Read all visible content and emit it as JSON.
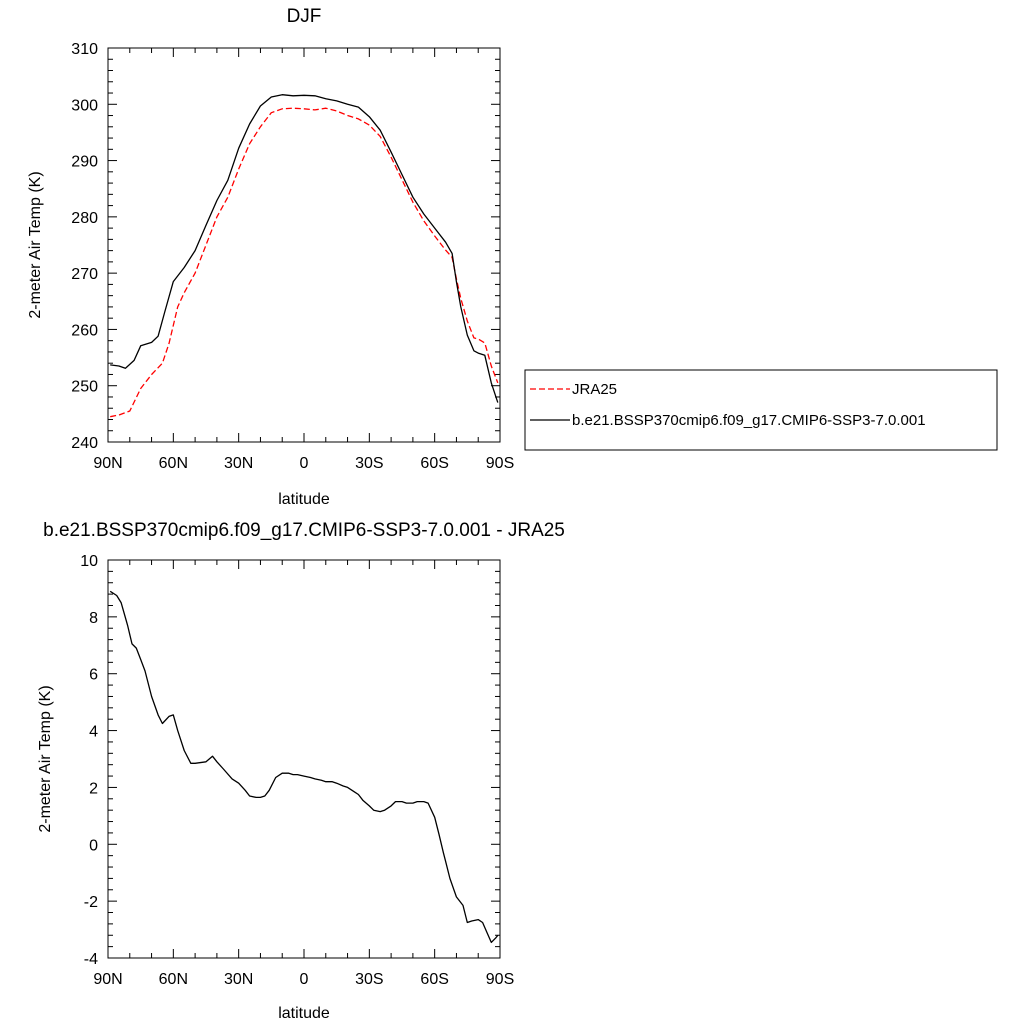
{
  "chart_data": [
    {
      "type": "line",
      "title": "DJF",
      "xlabel": "latitude",
      "ylabel": "2-meter Air Temp (K)",
      "xlim": [
        90,
        -90
      ],
      "ylim": [
        240,
        310
      ],
      "xticks": [
        90,
        60,
        30,
        0,
        -30,
        -60,
        -90
      ],
      "xtick_labels": [
        "90N",
        "60N",
        "30N",
        "0",
        "30S",
        "60S",
        "90S"
      ],
      "yticks": [
        240,
        250,
        260,
        270,
        280,
        290,
        300,
        310
      ],
      "ytick_labels": [
        "240",
        "250",
        "260",
        "270",
        "280",
        "290",
        "300",
        "310"
      ],
      "grid": false,
      "legend_position": "right",
      "series": [
        {
          "name": "JRA25",
          "color": "#ff0000",
          "dash": "dashed",
          "x": [
            89,
            85,
            80,
            75,
            70,
            65,
            62,
            58,
            55,
            50,
            45,
            40,
            35,
            30,
            25,
            20,
            15,
            10,
            5,
            0,
            -5,
            -10,
            -15,
            -20,
            -25,
            -30,
            -35,
            -40,
            -45,
            -50,
            -55,
            -60,
            -65,
            -68,
            -70,
            -72,
            -75,
            -78,
            -80,
            -83,
            -86,
            -89
          ],
          "y": [
            244.5,
            244.8,
            245.5,
            249.5,
            252,
            254,
            257.5,
            264,
            266.5,
            270,
            275,
            280,
            283.5,
            288.5,
            293,
            296,
            298.5,
            299.2,
            299.3,
            299.2,
            299.0,
            299.3,
            298.8,
            298.0,
            297.4,
            296.3,
            294.3,
            290.6,
            286.6,
            282.6,
            279.3,
            276.6,
            274.1,
            272.8,
            269,
            265.5,
            261.5,
            258.5,
            258.3,
            257.6,
            253.5,
            250.5
          ]
        },
        {
          "name": "b.e21.BSSP370cmip6.f09_g17.CMIP6-SSP3-7.0.001",
          "color": "#000000",
          "dash": "solid",
          "x": [
            89,
            85,
            82,
            78,
            75,
            70,
            67,
            64,
            60,
            55,
            50,
            45,
            40,
            35,
            30,
            25,
            20,
            15,
            10,
            5,
            0,
            -5,
            -10,
            -15,
            -20,
            -25,
            -30,
            -35,
            -40,
            -45,
            -50,
            -55,
            -60,
            -65,
            -68,
            -70,
            -72,
            -75,
            -78,
            -80,
            -83,
            -86,
            -89
          ],
          "y": [
            253.7,
            253.5,
            253.1,
            254.5,
            257.1,
            257.7,
            258.8,
            263,
            268.5,
            271,
            274,
            278.5,
            282.9,
            286.5,
            292.2,
            296.5,
            299.7,
            301.3,
            301.7,
            301.5,
            301.6,
            301.5,
            301.0,
            300.6,
            300.0,
            299.5,
            297.8,
            295.4,
            291.5,
            287.5,
            283.5,
            280.5,
            278.0,
            275.5,
            273.5,
            268.5,
            264,
            259,
            256.2,
            255.8,
            255.4,
            250.5,
            247
          ]
        }
      ]
    },
    {
      "type": "line",
      "title": "b.e21.BSSP370cmip6.f09_g17.CMIP6-SSP3-7.0.001 - JRA25",
      "xlabel": "latitude",
      "ylabel": "2-meter Air Temp (K)",
      "xlim": [
        90,
        -90
      ],
      "ylim": [
        -4,
        10
      ],
      "xticks": [
        90,
        60,
        30,
        0,
        -30,
        -60,
        -90
      ],
      "xtick_labels": [
        "90N",
        "60N",
        "30N",
        "0",
        "30S",
        "60S",
        "90S"
      ],
      "yticks": [
        -4,
        -2,
        0,
        2,
        4,
        6,
        8,
        10
      ],
      "ytick_labels": [
        "-4",
        "-2",
        "0",
        "2",
        "4",
        "6",
        "8",
        "10"
      ],
      "grid": false,
      "series": [
        {
          "color": "#000000",
          "dash": "solid",
          "x": [
            89,
            86,
            84,
            81,
            79,
            77,
            75,
            73,
            70,
            67,
            65,
            62,
            60,
            58,
            55,
            52,
            50,
            45,
            42,
            40,
            37,
            33,
            30,
            27,
            25,
            22,
            20,
            18,
            16,
            13,
            10,
            7,
            5,
            3,
            0,
            -3,
            -5,
            -8,
            -10,
            -13,
            -15,
            -18,
            -20,
            -23,
            -25,
            -27,
            -30,
            -32,
            -35,
            -37,
            -40,
            -42,
            -45,
            -47,
            -50,
            -52,
            -55,
            -57,
            -60,
            -62,
            -64,
            -65,
            -67,
            -70,
            -73,
            -75,
            -77,
            -80,
            -82,
            -84,
            -86,
            -88,
            -89
          ],
          "y": [
            8.9,
            8.75,
            8.5,
            7.7,
            7.05,
            6.9,
            6.5,
            6.1,
            5.2,
            4.55,
            4.25,
            4.5,
            4.55,
            4.0,
            3.3,
            2.85,
            2.85,
            2.9,
            3.1,
            2.9,
            2.65,
            2.3,
            2.15,
            1.9,
            1.7,
            1.65,
            1.65,
            1.7,
            1.9,
            2.35,
            2.5,
            2.5,
            2.45,
            2.45,
            2.4,
            2.35,
            2.3,
            2.25,
            2.2,
            2.2,
            2.15,
            2.05,
            2.0,
            1.85,
            1.75,
            1.55,
            1.35,
            1.2,
            1.15,
            1.2,
            1.35,
            1.5,
            1.5,
            1.45,
            1.45,
            1.5,
            1.5,
            1.45,
            0.95,
            0.35,
            -0.3,
            -0.6,
            -1.2,
            -1.85,
            -2.15,
            -2.75,
            -2.7,
            -2.65,
            -2.75,
            -3.1,
            -3.45,
            -3.3,
            -3.2
          ]
        }
      ]
    }
  ]
}
